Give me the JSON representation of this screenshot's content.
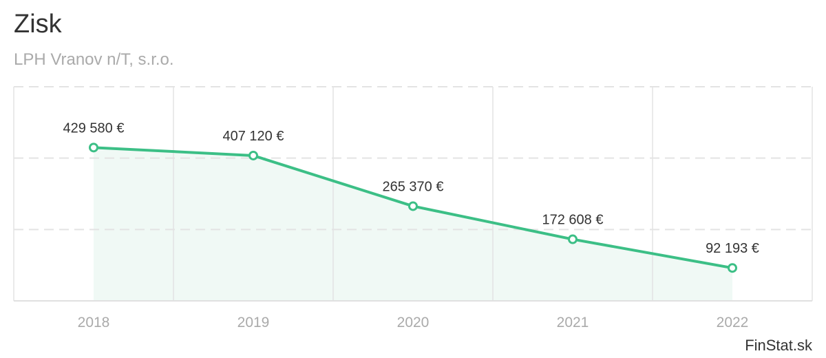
{
  "header": {
    "title": "Zisk",
    "subtitle": "LPH Vranov n/T, s.r.o."
  },
  "credit": "FinStat.sk",
  "colors": {
    "line": "#3cbf86",
    "area": "#f0f9f5",
    "grid": "#e3e3e3"
  },
  "chart_data": {
    "type": "area",
    "title": "Zisk",
    "subtitle": "LPH Vranov n/T, s.r.o.",
    "categories": [
      "2018",
      "2019",
      "2020",
      "2021",
      "2022"
    ],
    "values": [
      429580,
      407120,
      265370,
      172608,
      92193
    ],
    "data_labels": [
      "429 580 €",
      "407 120 €",
      "265 370 €",
      "172 608 €",
      "92 193 €"
    ],
    "ylim": [
      0,
      600000
    ],
    "y_gridlines": [
      200000,
      400000,
      600000
    ],
    "grid": true,
    "legend": "none"
  }
}
